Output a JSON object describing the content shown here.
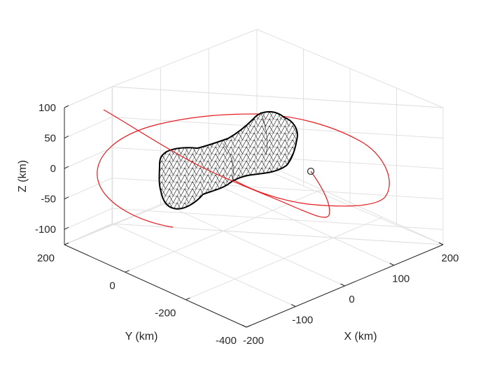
{
  "chart_data": {
    "type": "3d-line-mesh",
    "xlabel": "X (km)",
    "ylabel": "Y (km)",
    "zlabel": "Z (km)",
    "xlim": [
      -200,
      200
    ],
    "ylim": [
      -400,
      200
    ],
    "zlim": [
      -125,
      100
    ],
    "xticks": [
      -200,
      -100,
      0,
      100,
      200
    ],
    "xtick_labels": [
      "-200",
      "-100",
      "0",
      "100",
      "200"
    ],
    "yticks": [
      -400,
      -200,
      0,
      200
    ],
    "ytick_labels": [
      "-400",
      "-200",
      "0",
      "200"
    ],
    "zticks": [
      -100,
      -50,
      0,
      50,
      100
    ],
    "ztick_labels": [
      "-100",
      "-50",
      "0",
      "50",
      "100"
    ],
    "grid": true,
    "orbit_color": "#e8191d",
    "mesh_color": "#000000",
    "end_marker": "circle"
  }
}
